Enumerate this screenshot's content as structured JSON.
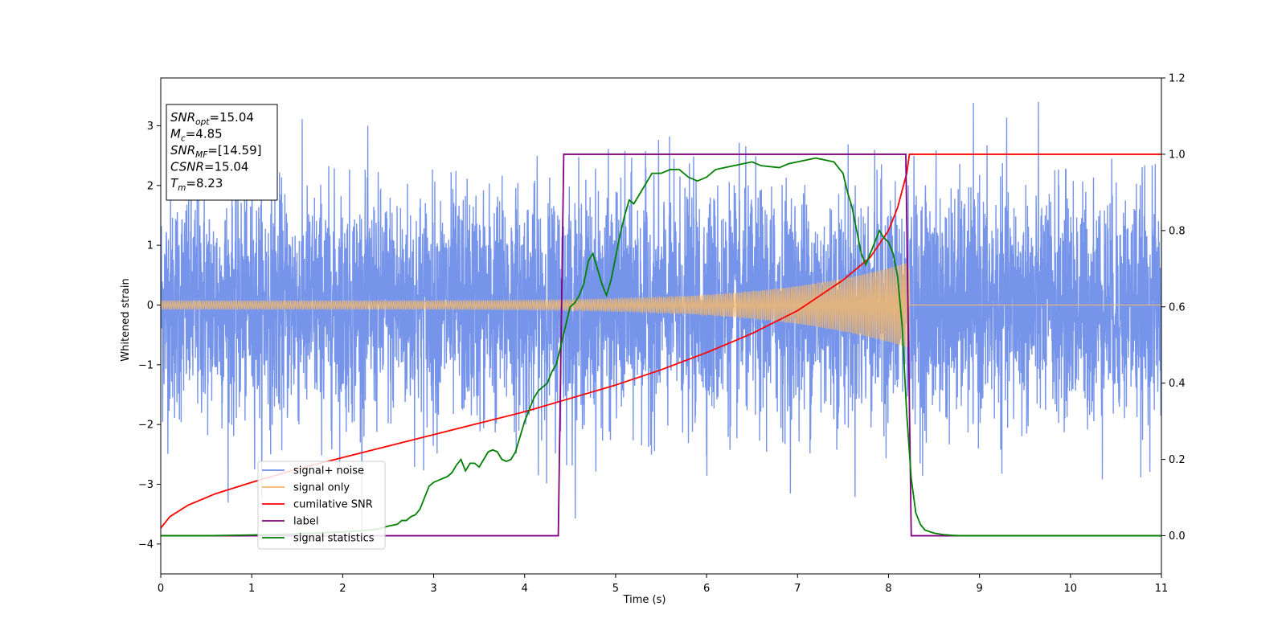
{
  "chart_data": {
    "type": "line",
    "title": "",
    "xlabel": "Time (s)",
    "ylabel": "Whitened strain",
    "y2label": "",
    "xlim": [
      0,
      11
    ],
    "ylim": [
      -4.5,
      3.8
    ],
    "y2lim": [
      -0.1,
      1.2
    ],
    "xticks": [
      0,
      1,
      2,
      3,
      4,
      5,
      6,
      7,
      8,
      9,
      10,
      11
    ],
    "yticks": [
      -4,
      -3,
      -2,
      -1,
      0,
      1,
      2,
      3
    ],
    "y2ticks": [
      0.0,
      0.2,
      0.4,
      0.6,
      0.8,
      1.0,
      1.2
    ],
    "grid": false,
    "legend_position": "lower-left",
    "annotation": {
      "lines": [
        {
          "name": "SNR",
          "sub": "opt",
          "value": "=15.04"
        },
        {
          "name": "M",
          "sub": "c",
          "value": "=4.85"
        },
        {
          "name": "SNR",
          "sub": "MF",
          "value": "=[14.59]"
        },
        {
          "name": "CSNR",
          "sub": "",
          "value": "=15.04"
        },
        {
          "name": "T",
          "sub": "m",
          "value": "=8.23"
        }
      ]
    },
    "series": [
      {
        "name": "signal+ noise",
        "color": "#6f8ee8",
        "axis": "left",
        "description_kind": "noise",
        "params": {
          "sigma": 0.95,
          "x_end": 11
        }
      },
      {
        "name": "signal only",
        "color": "#f5b86b",
        "axis": "left",
        "description_kind": "chirp",
        "params": {
          "t_merge": 8.23,
          "amp_start": 0.07,
          "amp_end": 0.72
        }
      },
      {
        "name": "cumilative SNR",
        "color": "#ff0000",
        "axis": "right",
        "x": [
          0,
          0.1,
          0.3,
          0.6,
          1.0,
          1.5,
          2.0,
          2.5,
          3.0,
          3.5,
          4.0,
          4.5,
          5.0,
          5.5,
          6.0,
          6.5,
          7.0,
          7.5,
          7.8,
          8.0,
          8.1,
          8.2,
          8.23,
          11
        ],
        "y": [
          0.02,
          0.05,
          0.08,
          0.11,
          0.14,
          0.175,
          0.205,
          0.235,
          0.265,
          0.295,
          0.325,
          0.36,
          0.395,
          0.435,
          0.48,
          0.53,
          0.59,
          0.67,
          0.73,
          0.8,
          0.86,
          0.95,
          1.0,
          1.0
        ]
      },
      {
        "name": "label",
        "color": "#800080",
        "axis": "right",
        "x": [
          0,
          4.37,
          4.43,
          8.19,
          8.25,
          11
        ],
        "y": [
          0,
          0,
          1,
          1,
          0,
          0
        ]
      },
      {
        "name": "signal statistics",
        "color": "#008000",
        "axis": "right",
        "x": [
          0,
          0.5,
          1.0,
          1.5,
          1.8,
          2.0,
          2.2,
          2.4,
          2.5,
          2.6,
          2.65,
          2.7,
          2.75,
          2.8,
          2.85,
          2.9,
          2.95,
          3.0,
          3.1,
          3.15,
          3.2,
          3.25,
          3.3,
          3.35,
          3.4,
          3.45,
          3.5,
          3.55,
          3.6,
          3.65,
          3.7,
          3.75,
          3.8,
          3.85,
          3.9,
          3.95,
          4.0,
          4.05,
          4.1,
          4.15,
          4.2,
          4.25,
          4.3,
          4.35,
          4.4,
          4.45,
          4.5,
          4.55,
          4.6,
          4.65,
          4.7,
          4.75,
          4.8,
          4.85,
          4.9,
          4.95,
          5.0,
          5.05,
          5.1,
          5.15,
          5.2,
          5.25,
          5.3,
          5.35,
          5.4,
          5.5,
          5.6,
          5.7,
          5.8,
          5.9,
          6.0,
          6.1,
          6.2,
          6.3,
          6.4,
          6.5,
          6.6,
          6.8,
          6.9,
          7.0,
          7.1,
          7.2,
          7.3,
          7.4,
          7.5,
          7.55,
          7.6,
          7.65,
          7.7,
          7.75,
          7.8,
          7.85,
          7.9,
          7.95,
          8.0,
          8.05,
          8.1,
          8.15,
          8.2,
          8.25,
          8.3,
          8.35,
          8.4,
          8.5,
          8.6,
          8.7,
          8.8,
          9.0,
          11.0
        ],
        "y": [
          0.0,
          0.0,
          0.002,
          0.005,
          0.008,
          0.01,
          0.013,
          0.018,
          0.025,
          0.03,
          0.04,
          0.04,
          0.05,
          0.055,
          0.07,
          0.1,
          0.13,
          0.14,
          0.15,
          0.155,
          0.165,
          0.185,
          0.2,
          0.17,
          0.19,
          0.19,
          0.18,
          0.2,
          0.22,
          0.225,
          0.22,
          0.2,
          0.195,
          0.2,
          0.22,
          0.26,
          0.3,
          0.33,
          0.36,
          0.38,
          0.39,
          0.4,
          0.43,
          0.45,
          0.5,
          0.55,
          0.6,
          0.61,
          0.63,
          0.66,
          0.72,
          0.74,
          0.7,
          0.66,
          0.63,
          0.67,
          0.73,
          0.79,
          0.84,
          0.88,
          0.87,
          0.89,
          0.91,
          0.93,
          0.95,
          0.95,
          0.96,
          0.96,
          0.94,
          0.93,
          0.94,
          0.96,
          0.965,
          0.97,
          0.975,
          0.98,
          0.97,
          0.965,
          0.975,
          0.98,
          0.985,
          0.99,
          0.985,
          0.98,
          0.95,
          0.9,
          0.86,
          0.8,
          0.74,
          0.71,
          0.74,
          0.77,
          0.8,
          0.78,
          0.77,
          0.74,
          0.68,
          0.55,
          0.32,
          0.15,
          0.06,
          0.03,
          0.015,
          0.007,
          0.003,
          0.001,
          0.0,
          0.0,
          0.0
        ]
      }
    ]
  }
}
